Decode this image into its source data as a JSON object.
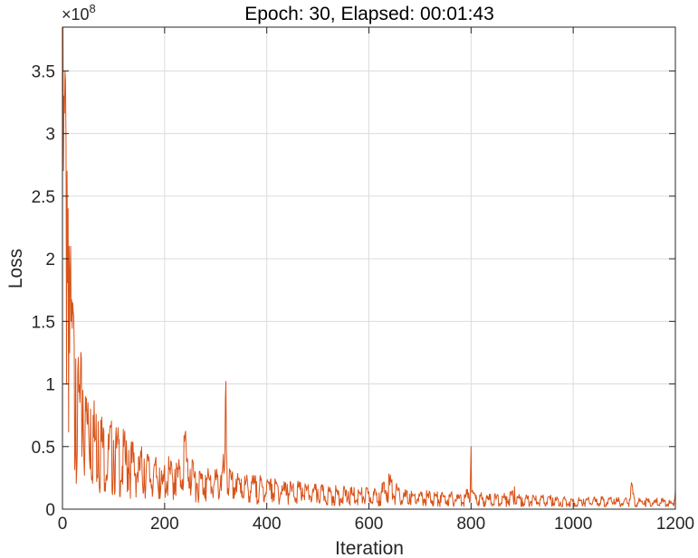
{
  "chart_data": {
    "type": "line",
    "title": "Epoch: 30, Elapsed: 00:01:43",
    "xlabel": "Iteration",
    "ylabel": "Loss",
    "xlim": [
      0,
      1200
    ],
    "ylim": [
      0,
      3.85
    ],
    "x_ticks": [
      "0",
      "200",
      "400",
      "600",
      "800",
      "1000",
      "1200"
    ],
    "y_ticks": [
      "0",
      "0.5",
      "1",
      "1.5",
      "2",
      "2.5",
      "3",
      "3.5"
    ],
    "y_exponent": {
      "base": "×10",
      "power": "8"
    },
    "grid": true,
    "line_color": "#d95319",
    "series": [
      {
        "x": [
          1,
          3,
          5,
          7,
          9,
          11,
          13,
          15,
          17,
          20,
          23,
          26,
          30,
          35,
          40,
          45,
          50,
          55,
          60,
          70,
          80,
          90,
          100,
          110,
          120,
          130,
          140,
          150,
          160,
          170,
          180,
          190,
          196,
          200,
          210,
          220,
          230,
          240,
          245,
          250,
          260,
          270,
          280,
          290,
          300,
          310,
          318,
          320,
          322,
          330,
          340,
          350,
          360,
          370,
          380,
          390,
          400,
          410,
          420,
          430,
          440,
          450,
          460,
          470,
          480,
          490,
          500,
          520,
          540,
          560,
          580,
          600,
          620,
          640,
          660,
          680,
          700,
          720,
          740,
          760,
          780,
          795,
          799,
          800,
          802,
          810,
          830,
          850,
          870,
          880,
          885,
          890,
          900,
          920,
          940,
          960,
          980,
          1000,
          1020,
          1040,
          1060,
          1080,
          1100,
          1110,
          1115,
          1120,
          1140,
          1160,
          1180,
          1195,
          1200
        ],
        "y": [
          3.85,
          3.3,
          3.5,
          2.9,
          2.7,
          2.4,
          2.1,
          1.9,
          1.5,
          1.65,
          1.3,
          1.2,
          1.1,
          1.0,
          0.95,
          0.9,
          0.85,
          0.8,
          0.75,
          0.7,
          0.65,
          0.6,
          0.55,
          0.52,
          0.5,
          0.47,
          0.45,
          0.42,
          0.4,
          0.38,
          0.36,
          0.33,
          0.2,
          0.35,
          0.33,
          0.32,
          0.34,
          0.6,
          0.4,
          0.32,
          0.3,
          0.28,
          0.27,
          0.27,
          0.26,
          0.27,
          0.4,
          1.02,
          0.35,
          0.25,
          0.24,
          0.24,
          0.23,
          0.22,
          0.22,
          0.21,
          0.21,
          0.2,
          0.2,
          0.19,
          0.2,
          0.18,
          0.18,
          0.17,
          0.17,
          0.16,
          0.16,
          0.15,
          0.15,
          0.14,
          0.14,
          0.14,
          0.13,
          0.25,
          0.13,
          0.12,
          0.12,
          0.12,
          0.11,
          0.11,
          0.11,
          0.13,
          0.3,
          0.5,
          0.15,
          0.11,
          0.1,
          0.1,
          0.1,
          0.14,
          0.18,
          0.1,
          0.09,
          0.09,
          0.09,
          0.09,
          0.08,
          0.08,
          0.08,
          0.08,
          0.08,
          0.08,
          0.07,
          0.08,
          0.2,
          0.08,
          0.07,
          0.07,
          0.07,
          0.05,
          0.15
        ]
      }
    ]
  }
}
